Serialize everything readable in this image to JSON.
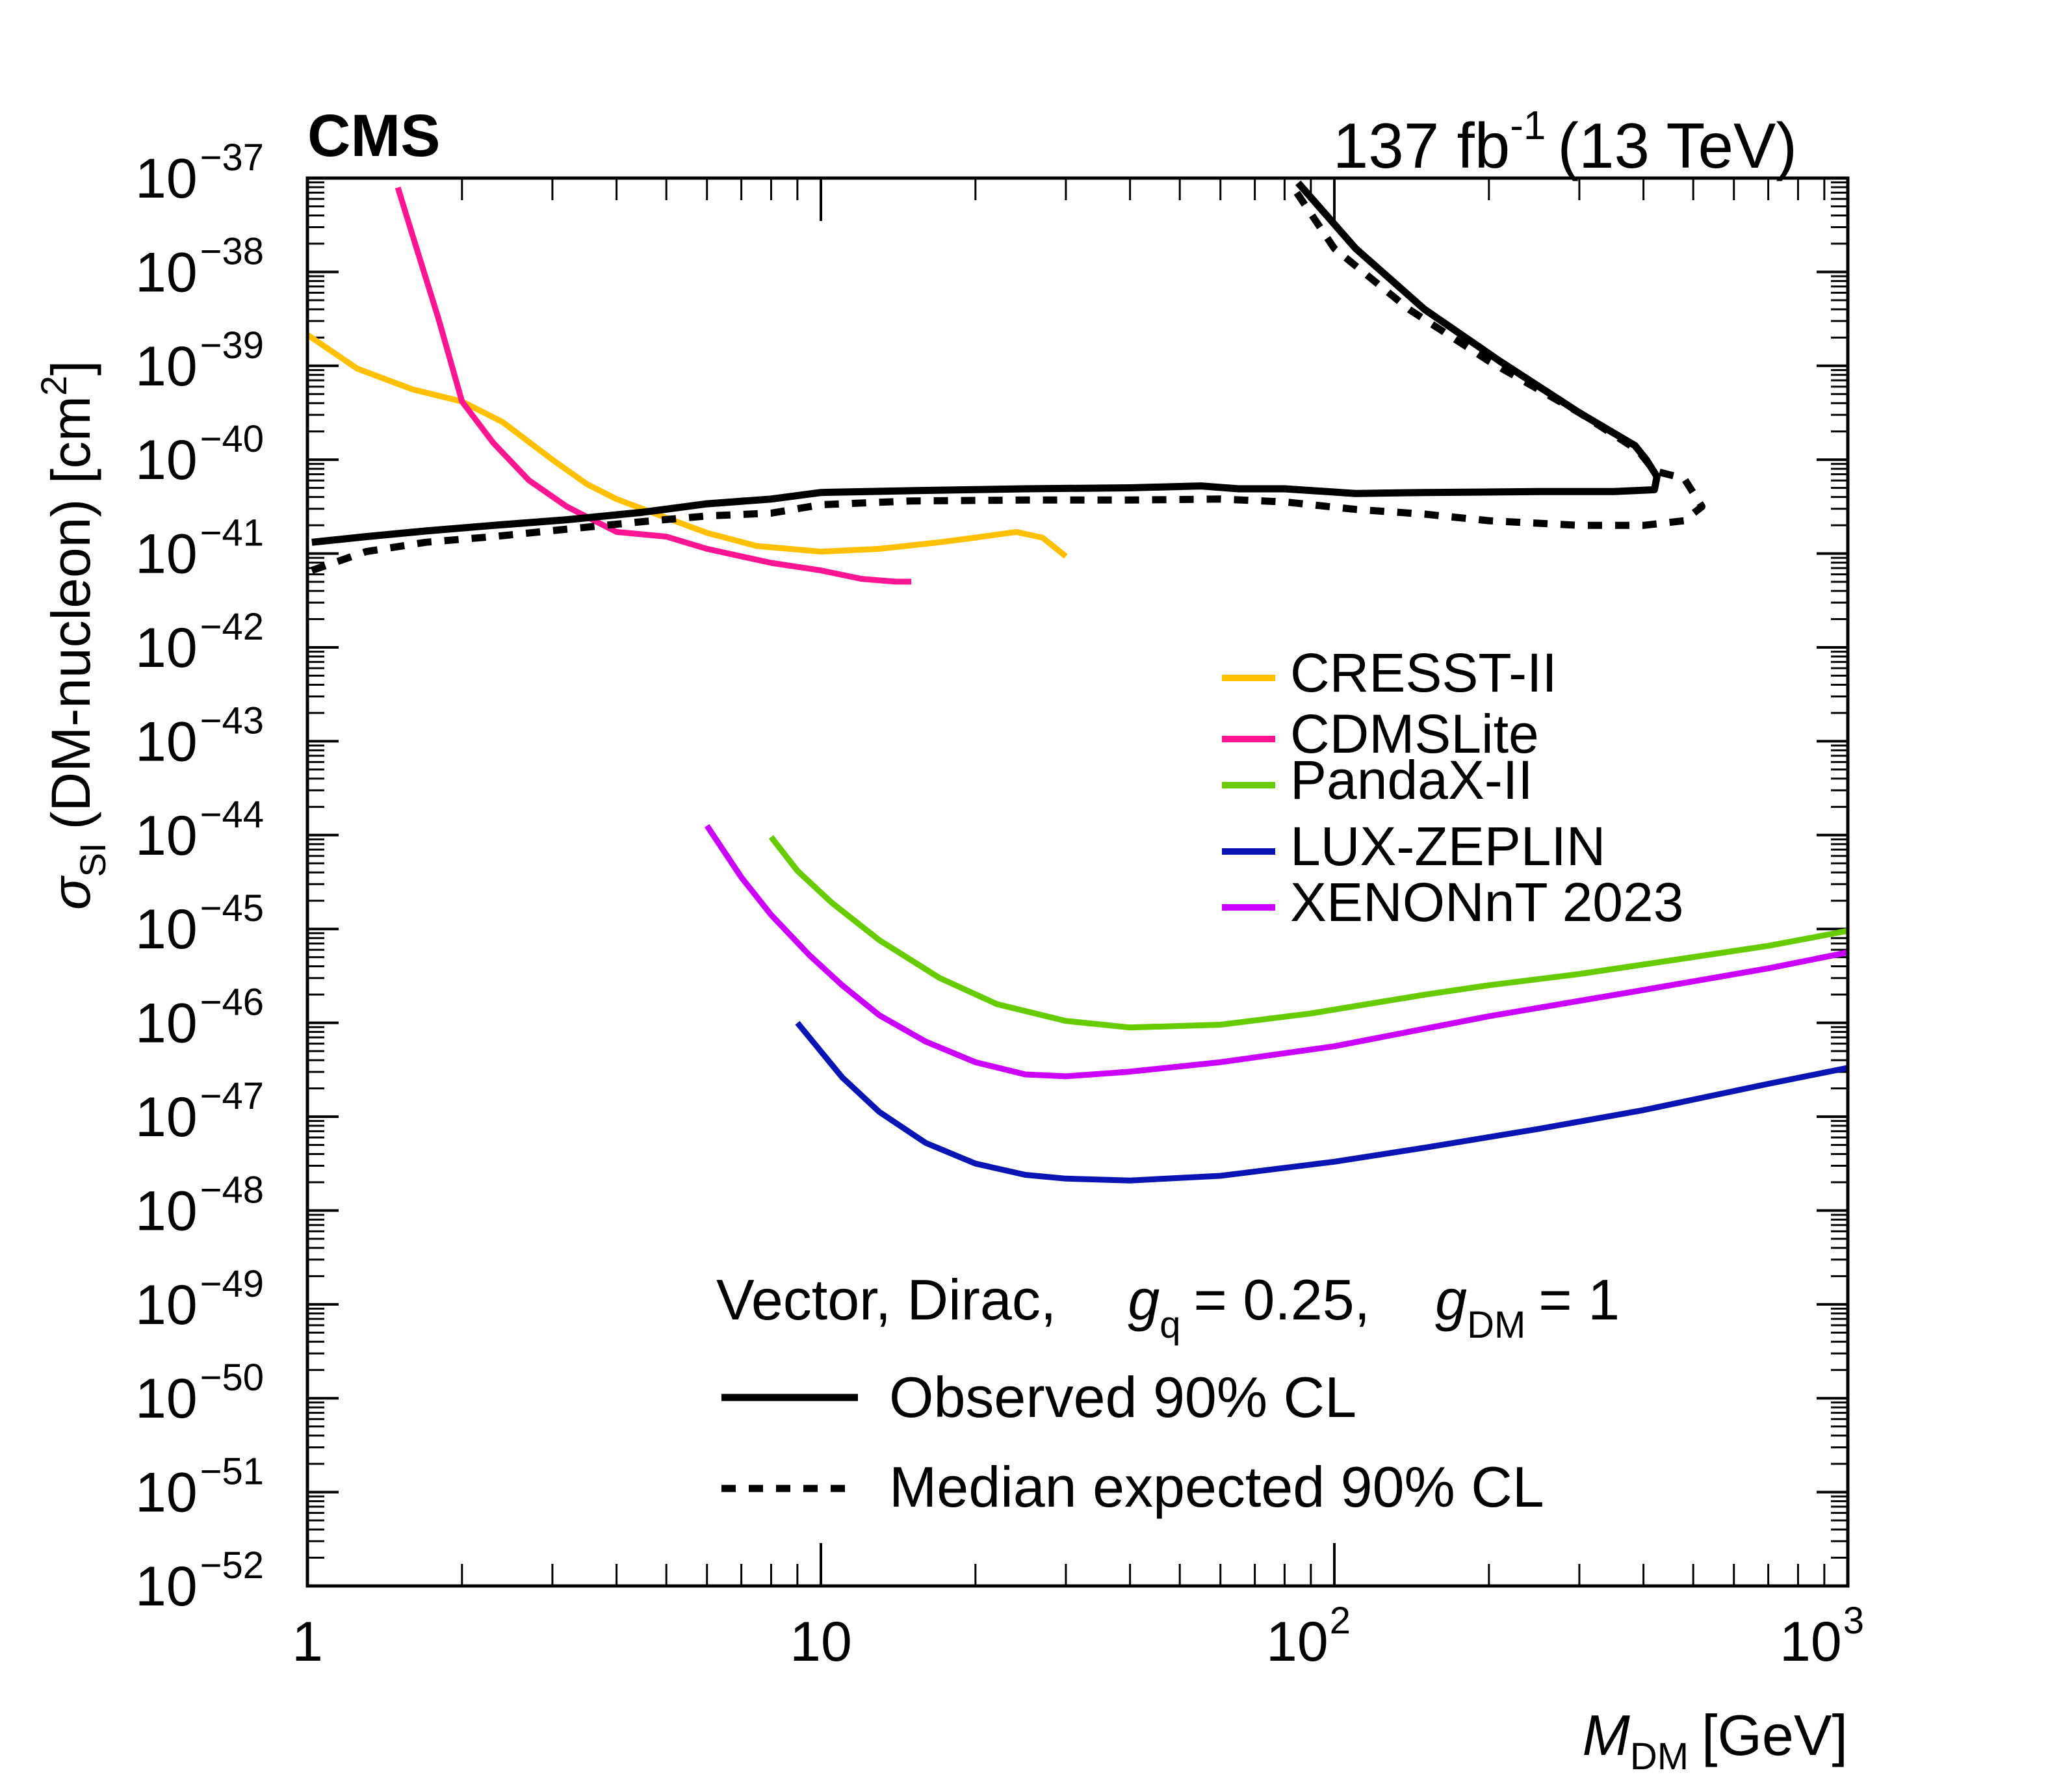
{
  "experiment": "CMS",
  "lumi": "137 fb",
  "lumi_exp": "-1",
  "energy": "(13 TeV)",
  "model": {
    "prefix": "Vector, Dirac,",
    "gq_sym": "g",
    "gq_sub": "q",
    "gq_val": "= 0.25,",
    "gdm_sym": "g",
    "gdm_sub": "DM",
    "gdm_val": "= 1"
  },
  "colors": {
    "CRESST-II": "#ffc000",
    "CDMSLite": "#ff1493",
    "PandaX-II": "#66cc00",
    "LUX-ZEPLIN": "#0a14b4",
    "XENONnT 2023": "#cc00ff",
    "cms": "#000000"
  },
  "chart_data": {
    "type": "line",
    "title": "",
    "xlabel": "M",
    "xlabel_sub": "DM",
    "xlabel_unit": "[GeV]",
    "ylabel_sym": "σ",
    "ylabel_sub": "SI",
    "ylabel_text": "(DM-nucleon) [cm",
    "ylabel_sup": "2",
    "ylabel_end": "]",
    "xscale": "log",
    "yscale": "log",
    "xlim": [
      1,
      1000
    ],
    "ylim": [
      1e-52,
      1e-37
    ],
    "x_ticks": [
      {
        "value": 1,
        "base": "1",
        "exp": ""
      },
      {
        "value": 10,
        "base": "10",
        "exp": ""
      },
      {
        "value": 100,
        "base": "10",
        "exp": "2"
      },
      {
        "value": 1000,
        "base": "10",
        "exp": "3"
      }
    ],
    "y_ticks": [
      {
        "value": -37,
        "base": "10",
        "exp": "−37"
      },
      {
        "value": -38,
        "base": "10",
        "exp": "−38"
      },
      {
        "value": -39,
        "base": "10",
        "exp": "−39"
      },
      {
        "value": -40,
        "base": "10",
        "exp": "−40"
      },
      {
        "value": -41,
        "base": "10",
        "exp": "−41"
      },
      {
        "value": -42,
        "base": "10",
        "exp": "−42"
      },
      {
        "value": -43,
        "base": "10",
        "exp": "−43"
      },
      {
        "value": -44,
        "base": "10",
        "exp": "−44"
      },
      {
        "value": -45,
        "base": "10",
        "exp": "−45"
      },
      {
        "value": -46,
        "base": "10",
        "exp": "−46"
      },
      {
        "value": -47,
        "base": "10",
        "exp": "−47"
      },
      {
        "value": -48,
        "base": "10",
        "exp": "−48"
      },
      {
        "value": -49,
        "base": "10",
        "exp": "−49"
      },
      {
        "value": -50,
        "base": "10",
        "exp": "−50"
      },
      {
        "value": -51,
        "base": "10",
        "exp": "−51"
      },
      {
        "value": -52,
        "base": "10",
        "exp": "−52"
      }
    ],
    "legend_position": "right",
    "legend_entries": [
      "CRESST-II",
      "CDMSLite",
      "PandaX-II",
      "LUX-ZEPLIN",
      "XENONnT 2023"
    ],
    "cms_legend": [
      {
        "label": "Observed 90% CL",
        "style": "solid"
      },
      {
        "label": "Median expected 90% CL",
        "style": "dashed"
      }
    ],
    "series": [
      {
        "name": "CRESST-II",
        "style": "solid",
        "x": [
          1.0,
          1.25,
          1.6,
          2.0,
          2.4,
          3.0,
          3.5,
          4.0,
          5.0,
          6.0,
          7.5,
          10.0,
          13.0,
          17.0,
          20.0,
          24.0,
          27.0,
          30.0
        ],
        "log10y": [
          -38.67,
          -39.03,
          -39.25,
          -39.38,
          -39.6,
          -40.0,
          -40.26,
          -40.42,
          -40.62,
          -40.78,
          -40.92,
          -40.98,
          -40.95,
          -40.88,
          -40.83,
          -40.77,
          -40.83,
          -41.03
        ]
      },
      {
        "name": "CDMSLite",
        "style": "solid",
        "x": [
          1.5,
          1.6,
          1.8,
          2.0,
          2.3,
          2.7,
          3.2,
          4.0,
          5.0,
          6.0,
          8.0,
          10.0,
          12.0,
          14.0,
          15.0
        ],
        "log10y": [
          -37.1,
          -37.6,
          -38.5,
          -39.38,
          -39.82,
          -40.22,
          -40.5,
          -40.77,
          -40.82,
          -40.95,
          -41.1,
          -41.18,
          -41.27,
          -41.3,
          -41.3
        ]
      },
      {
        "name": "PandaX-II",
        "style": "solid",
        "x": [
          8.0,
          9.0,
          10.5,
          13.0,
          17.0,
          22.0,
          30.0,
          40.0,
          60.0,
          90.0,
          150.0,
          200.0,
          300.0,
          500.0,
          700.0,
          1000.0
        ],
        "log10y": [
          -44.02,
          -44.38,
          -44.72,
          -45.12,
          -45.52,
          -45.8,
          -45.98,
          -46.05,
          -46.02,
          -45.9,
          -45.7,
          -45.6,
          -45.48,
          -45.3,
          -45.18,
          -45.02
        ]
      },
      {
        "name": "LUX-ZEPLIN",
        "style": "solid",
        "x": [
          9.0,
          11.0,
          13.0,
          16.0,
          20.0,
          25.0,
          30.0,
          40.0,
          60.0,
          100.0,
          150.0,
          250.0,
          400.0,
          700.0,
          1000.0
        ],
        "log10y": [
          -46.0,
          -46.58,
          -46.95,
          -47.28,
          -47.5,
          -47.62,
          -47.66,
          -47.68,
          -47.63,
          -47.48,
          -47.33,
          -47.13,
          -46.93,
          -46.65,
          -46.48
        ]
      },
      {
        "name": "XENONnT 2023",
        "style": "solid",
        "x": [
          6.0,
          7.0,
          8.0,
          9.5,
          11.0,
          13.0,
          16.0,
          20.0,
          25.0,
          30.0,
          40.0,
          60.0,
          100.0,
          200.0,
          400.0,
          700.0,
          1000.0
        ],
        "log10y": [
          -43.9,
          -44.45,
          -44.85,
          -45.28,
          -45.6,
          -45.92,
          -46.2,
          -46.42,
          -46.55,
          -46.57,
          -46.52,
          -46.42,
          -46.25,
          -45.93,
          -45.65,
          -45.42,
          -45.25
        ]
      },
      {
        "name": "Observed 90% CL",
        "style": "solid",
        "x": [
          1.02,
          1.3,
          1.7,
          2.3,
          3.2,
          4.5,
          6.0,
          8.0,
          10.0,
          15.0,
          25.0,
          40.0,
          55.0,
          65.0,
          80.0,
          110.0,
          150.0,
          250.0,
          350.0,
          420.0,
          425.0,
          405.0,
          385.0,
          300.0,
          210.0,
          150.0,
          110.0,
          85.0
        ],
        "log10y": [
          -40.88,
          -40.82,
          -40.76,
          -40.7,
          -40.64,
          -40.56,
          -40.47,
          -40.42,
          -40.35,
          -40.33,
          -40.31,
          -40.3,
          -40.28,
          -40.31,
          -40.31,
          -40.36,
          -40.35,
          -40.34,
          -40.34,
          -40.32,
          -40.18,
          -40.0,
          -39.85,
          -39.5,
          -38.95,
          -38.4,
          -37.75,
          -37.05
        ]
      },
      {
        "name": "Median expected 90% CL",
        "style": "dashed",
        "x": [
          1.02,
          1.3,
          1.7,
          2.3,
          3.2,
          4.5,
          6.0,
          8.0,
          10.0,
          15.0,
          25.0,
          40.0,
          60.0,
          80.0,
          110.0,
          150.0,
          200.0,
          300.0,
          400.0,
          480.0,
          520.0,
          480.0,
          420.0,
          390.0,
          300.0,
          200.0,
          140.0,
          100.0,
          82.0
        ],
        "log10y": [
          -41.18,
          -40.98,
          -40.88,
          -40.82,
          -40.74,
          -40.66,
          -40.6,
          -40.57,
          -40.48,
          -40.44,
          -40.43,
          -40.43,
          -40.42,
          -40.45,
          -40.53,
          -40.58,
          -40.65,
          -40.7,
          -40.7,
          -40.65,
          -40.5,
          -40.2,
          -40.12,
          -39.9,
          -39.5,
          -38.95,
          -38.4,
          -37.75,
          -37.05
        ]
      }
    ]
  }
}
